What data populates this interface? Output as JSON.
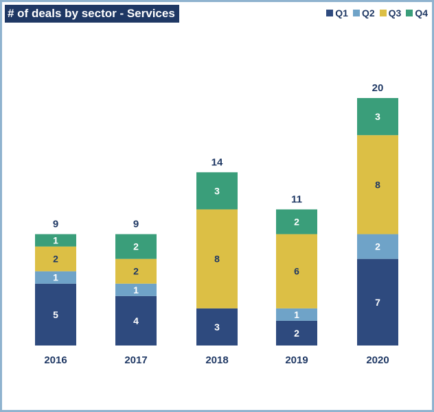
{
  "chart_data": {
    "type": "bar",
    "stacked": true,
    "title": "# of deals by sector - Services",
    "categories": [
      "2016",
      "2017",
      "2018",
      "2019",
      "2020"
    ],
    "series": [
      {
        "name": "Q1",
        "color": "#2e4a7e",
        "values": [
          5,
          4,
          3,
          2,
          7
        ]
      },
      {
        "name": "Q2",
        "color": "#6fa3c8",
        "values": [
          1,
          1,
          0,
          1,
          2
        ]
      },
      {
        "name": "Q3",
        "color": "#dcbf45",
        "values": [
          2,
          2,
          8,
          6,
          8
        ]
      },
      {
        "name": "Q4",
        "color": "#3a9e7a",
        "values": [
          1,
          2,
          3,
          2,
          3
        ]
      }
    ],
    "totals": [
      9,
      9,
      14,
      11,
      20
    ],
    "legend": "top-right",
    "grid": false,
    "ylim": [
      0,
      20
    ]
  }
}
